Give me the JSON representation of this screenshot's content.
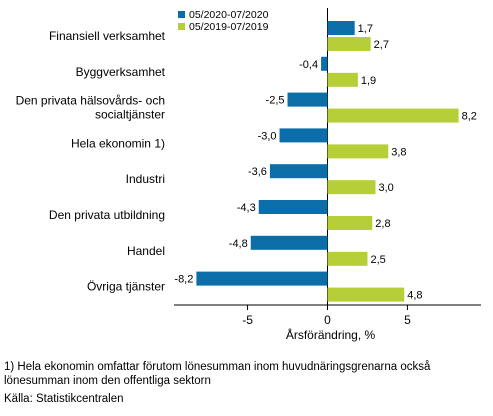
{
  "chart_data": {
    "type": "bar",
    "orientation": "horizontal",
    "title": "",
    "xlabel": "Årsförändring, %",
    "ylabel": "",
    "xlim": [
      -9.6,
      9.6
    ],
    "xticks": [
      -5,
      0,
      5
    ],
    "grid": false,
    "legend_position": "top",
    "categories": [
      "Finansiell verksamhet",
      "Byggverksamhet",
      "Den privata hälsovårds- och socialtjänster",
      "Hela ekonomin 1)",
      "Industri",
      "Den privata utbildning",
      "Handel",
      "Övriga tjänster"
    ],
    "series": [
      {
        "name": "05/2020-07/2020",
        "color": "#0c6ea9",
        "values": [
          1.7,
          -0.4,
          -2.5,
          -3.0,
          -3.6,
          -4.3,
          -4.8,
          -8.2
        ],
        "labels": [
          "1,7",
          "-0,4",
          "-2,5",
          "-3,0",
          "-3,6",
          "-4,3",
          "-4,8",
          "-8,2"
        ]
      },
      {
        "name": "05/2019-07/2019",
        "color": "#b6cf38",
        "values": [
          2.7,
          1.9,
          8.2,
          3.8,
          3.0,
          2.8,
          2.5,
          4.8
        ],
        "labels": [
          "2,7",
          "1,9",
          "8,2",
          "3,8",
          "3,0",
          "2,8",
          "2,5",
          "4,8"
        ]
      }
    ]
  },
  "footnote_line1": "1) Hela ekonomin omfattar förutom lönesumman inom huvudnäringsgrenarna också",
  "footnote_line2": "lönesumman inom den offentliga sektorn",
  "source": "Källa: Statistikcentralen"
}
